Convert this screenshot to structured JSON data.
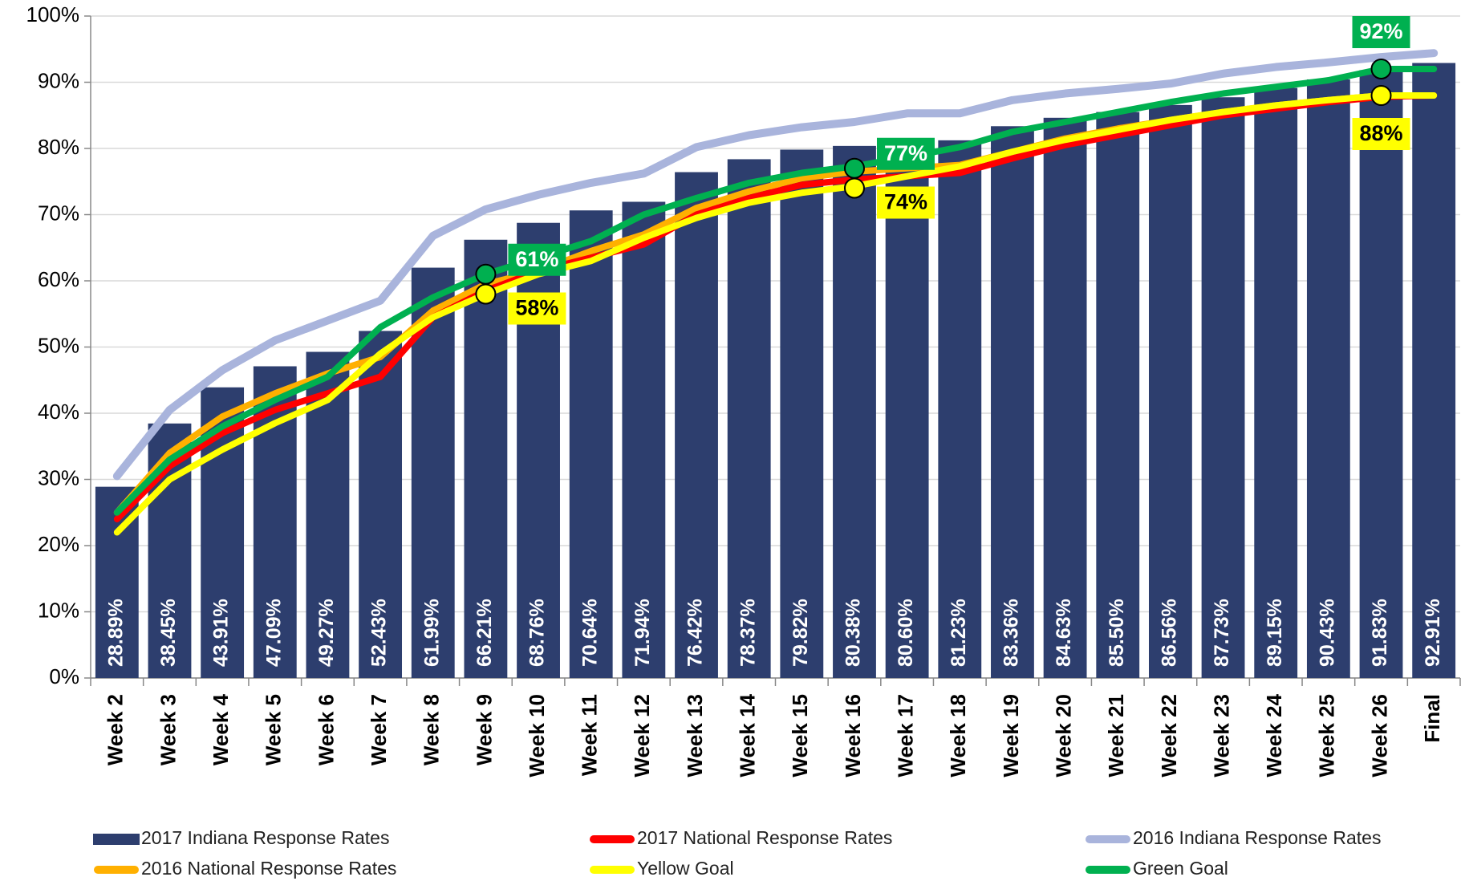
{
  "chart_data": {
    "type": "bar_line",
    "categories": [
      "Week 2",
      "Week 3",
      "Week 4",
      "Week 5",
      "Week 6",
      "Week 7",
      "Week 8",
      "Week 9",
      "Week 10",
      "Week 11",
      "Week 12",
      "Week 13",
      "Week 14",
      "Week 15",
      "Week 16",
      "Week 17",
      "Week 18",
      "Week 19",
      "Week 20",
      "Week 21",
      "Week 22",
      "Week 23",
      "Week 24",
      "Week 25",
      "Week 26",
      "Final"
    ],
    "series": [
      {
        "name": "2017 Indiana Response Rates",
        "kind": "bar",
        "color": "#2d3e6e",
        "values": [
          28.89,
          38.45,
          43.91,
          47.09,
          49.27,
          52.43,
          61.99,
          66.21,
          68.76,
          70.64,
          71.94,
          76.42,
          78.37,
          79.82,
          80.38,
          80.6,
          81.23,
          83.36,
          84.63,
          85.5,
          86.56,
          87.73,
          89.15,
          90.43,
          91.83,
          92.91
        ],
        "value_labels": [
          "28.89%",
          "38.45%",
          "43.91%",
          "47.09%",
          "49.27%",
          "52.43%",
          "61.99%",
          "66.21%",
          "68.76%",
          "70.64%",
          "71.94%",
          "76.42%",
          "78.37%",
          "79.82%",
          "80.38%",
          "80.60%",
          "81.23%",
          "83.36%",
          "84.63%",
          "85.50%",
          "86.56%",
          "87.73%",
          "89.15%",
          "90.43%",
          "91.83%",
          "92.91%"
        ]
      },
      {
        "name": "2017 National Response Rates",
        "kind": "line",
        "color": "#ff0000",
        "values": [
          24,
          32,
          37,
          40.5,
          43,
          45.5,
          54.5,
          58.5,
          61.5,
          63.5,
          65.5,
          70,
          72.5,
          74.5,
          75.3,
          75.8,
          76.3,
          78.5,
          80.5,
          82,
          83.5,
          85,
          86,
          87,
          87.8,
          88
        ]
      },
      {
        "name": "2016 Indiana Response Rates",
        "kind": "line",
        "color": "#a9b4dc",
        "values": [
          30.5,
          40.5,
          46.5,
          51,
          54,
          57,
          66.8,
          70.8,
          73,
          74.8,
          76.2,
          80.2,
          82,
          83.2,
          84,
          85.3,
          85.3,
          87.3,
          88.3,
          89,
          89.8,
          91.3,
          92.3,
          93,
          93.8,
          94.4
        ]
      },
      {
        "name": "2016 National Response Rates",
        "kind": "line",
        "color": "#ffb000",
        "values": [
          25,
          34,
          39.5,
          43,
          46,
          48.5,
          55.5,
          59.5,
          61.5,
          64.5,
          67,
          71,
          73.5,
          75.5,
          76.5,
          77,
          77.5,
          79.5,
          81.5,
          83,
          84.3,
          85.5,
          86.5,
          87.3,
          88,
          88
        ]
      },
      {
        "name": "Yellow Goal",
        "kind": "line",
        "color": "#ffff00",
        "values": [
          22,
          30,
          34.5,
          38.5,
          42,
          49,
          54.5,
          58,
          61,
          63,
          66.5,
          69.5,
          71.8,
          73.3,
          74.3,
          75.8,
          77.3,
          79.5,
          81.3,
          82.8,
          84.3,
          85.5,
          86.5,
          87.3,
          88,
          88
        ]
      },
      {
        "name": "Green Goal",
        "kind": "line",
        "color": "#00b050",
        "values": [
          25,
          33,
          38,
          42,
          45.5,
          53,
          57.5,
          61,
          63.5,
          66,
          70,
          72.5,
          74.8,
          76.3,
          77.3,
          78.7,
          80.2,
          82.5,
          84,
          85.5,
          87,
          88.3,
          89.3,
          90.3,
          92,
          92
        ]
      }
    ],
    "annotations": [
      {
        "series": 5,
        "category": 7,
        "value": 61,
        "label": "61%"
      },
      {
        "series": 4,
        "category": 7,
        "value": 58,
        "label": "58%"
      },
      {
        "series": 5,
        "category": 14,
        "value": 77,
        "label": "77%"
      },
      {
        "series": 4,
        "category": 14,
        "value": 74,
        "label": "74%"
      },
      {
        "series": 5,
        "category": 24,
        "value": 92,
        "label": "92%"
      },
      {
        "series": 4,
        "category": 24,
        "value": 88,
        "label": "88%"
      }
    ],
    "ylim": [
      0,
      100
    ],
    "yticks": [
      {
        "value": 0,
        "label": "0%"
      },
      {
        "value": 10,
        "label": "10%"
      },
      {
        "value": 20,
        "label": "20%"
      },
      {
        "value": 30,
        "label": "30%"
      },
      {
        "value": 40,
        "label": "40%"
      },
      {
        "value": 50,
        "label": "50%"
      },
      {
        "value": 60,
        "label": "60%"
      },
      {
        "value": 70,
        "label": "70%"
      },
      {
        "value": 80,
        "label": "80%"
      },
      {
        "value": 90,
        "label": "90%"
      },
      {
        "value": 100,
        "label": "100%"
      }
    ],
    "grid": true,
    "legend": "bottom"
  }
}
